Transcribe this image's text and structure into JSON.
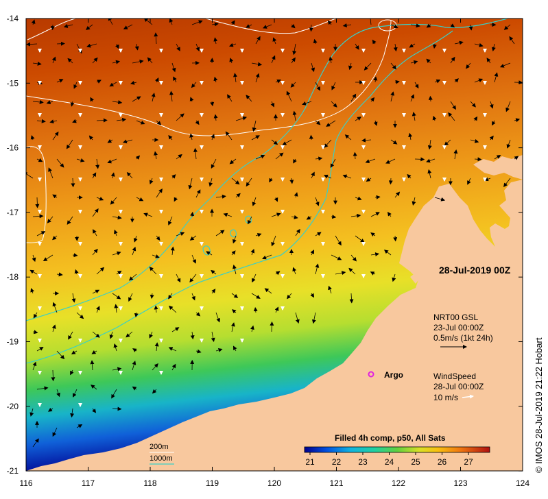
{
  "map": {
    "date_label": "28-Jul-2019 00Z",
    "current_legend": {
      "line1": "NRT00 GSL",
      "line2": "23-Jul 00:00Z",
      "line3": "0.5m/s (1kt 24h)"
    },
    "wind_legend": {
      "line1": "WindSpeed",
      "line2": "28-Jul 00:00Z",
      "line3": "10 m/s"
    },
    "argo_label": "Argo",
    "contour_legend": {
      "shallow": "200m",
      "deep": "1000m"
    },
    "colorbar": {
      "title": "Filled 4h comp, p50, All Sats",
      "ticks": [
        "21",
        "22",
        "23",
        "24",
        "25",
        "26",
        "27"
      ]
    },
    "credit": "© IMOS 28-Jul-2019 21:22 Hobart",
    "x_ticks": [
      "116",
      "117",
      "118",
      "119",
      "120",
      "121",
      "122",
      "123",
      "124"
    ],
    "y_ticks": [
      "-14",
      "-15",
      "-16",
      "-17",
      "-18",
      "-19",
      "-20",
      "-21"
    ],
    "colors": {
      "land": "#f8c89e",
      "current_arrow": "#000000",
      "wind_arrow": "#ffffff",
      "isobath_200": "#ffffff",
      "isobath_1000": "#38d0c8",
      "argo_marker": "#e020e0"
    }
  }
}
